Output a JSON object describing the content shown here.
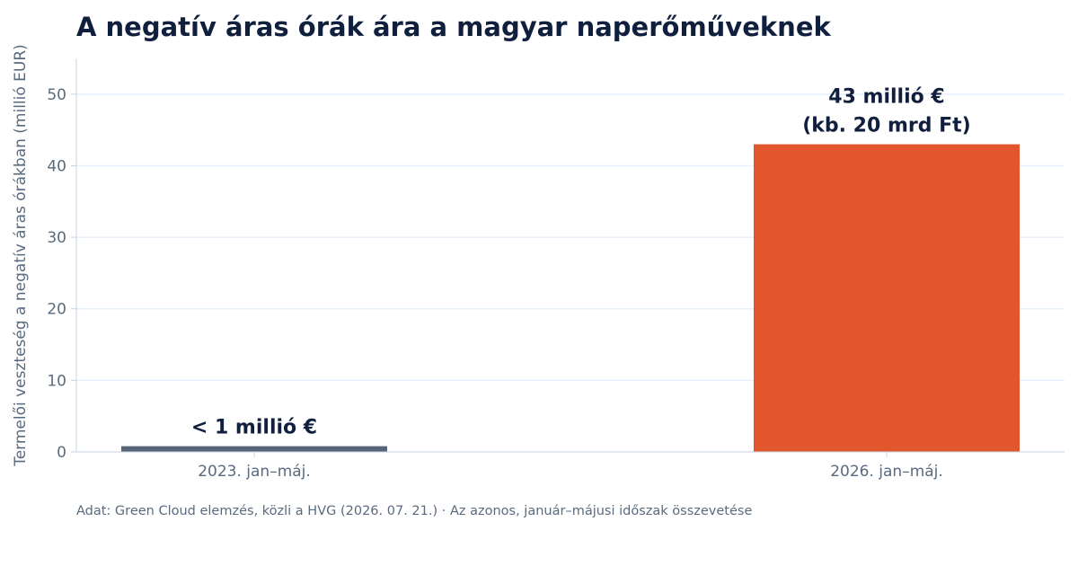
{
  "chart_data": {
    "type": "bar",
    "title": "A negatív áras órák ára a magyar naperőműveknek",
    "ylabel": "Termelői veszteség a negatív áras órákban (millió EUR)",
    "xlabel": "",
    "categories": [
      "2023. jan–máj.",
      "2026. jan–máj."
    ],
    "values": [
      0.8,
      43
    ],
    "data_labels": [
      [
        "< 1 millió €"
      ],
      [
        "43 millió €",
        "(kb. 20 mrd Ft)"
      ]
    ],
    "ylim": [
      0,
      55
    ],
    "yticks": [
      0,
      10,
      20,
      30,
      40,
      50
    ],
    "grid": true,
    "colors": [
      "#566678",
      "#e2562e"
    ],
    "source": "Adat: Green Cloud elemzés, közli a HVG (2026. 07. 21.) · Az azonos, január–májusi időszak összevetése"
  }
}
